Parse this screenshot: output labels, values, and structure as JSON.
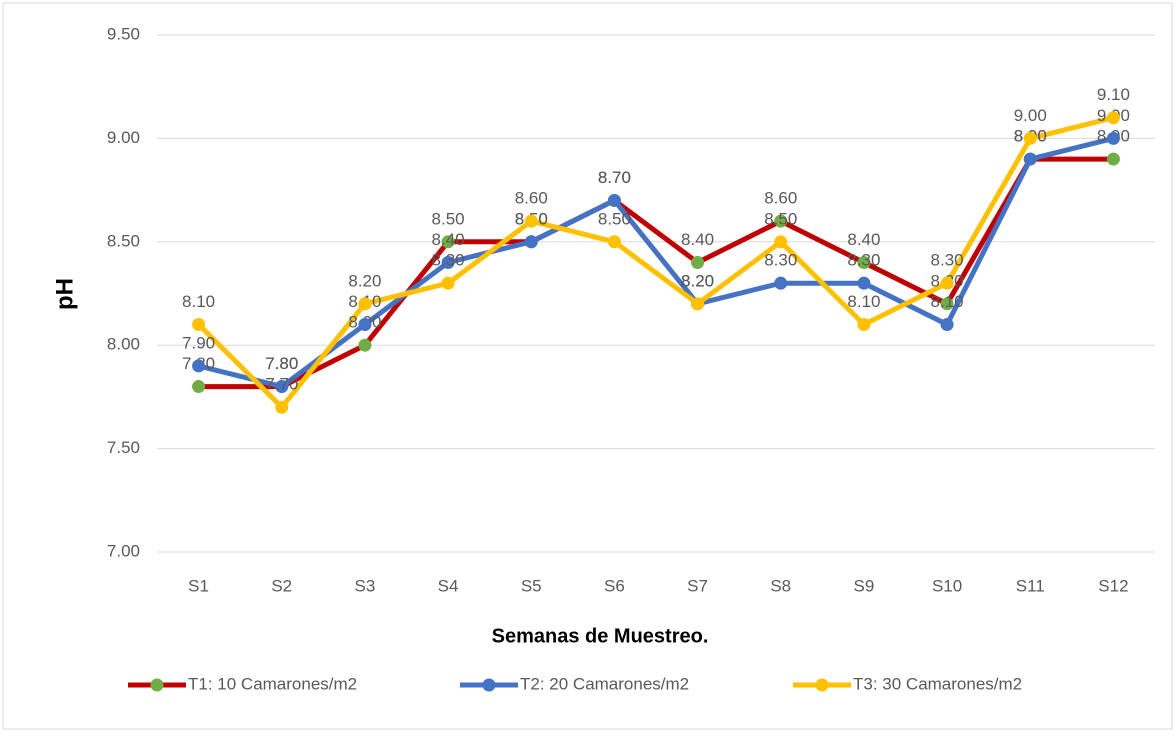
{
  "chart_data": {
    "type": "line",
    "x_label": "Semanas de Muestreo.",
    "y_label": "pH",
    "categories": [
      "S1",
      "S2",
      "S3",
      "S4",
      "S5",
      "S6",
      "S7",
      "S8",
      "S9",
      "S10",
      "S11",
      "S12"
    ],
    "series": [
      {
        "name": "T1: 10 Camarones/m2",
        "color": "#c00000",
        "marker_color": "#70ad47",
        "values": [
          7.8,
          7.8,
          8.0,
          8.5,
          8.5,
          8.7,
          8.4,
          8.6,
          8.4,
          8.2,
          8.9,
          8.9
        ],
        "value_labels": [
          "7.80",
          "7.80",
          "8.00",
          "8.50",
          "8.50",
          "8.70",
          "8.40",
          "8.60",
          "8.40",
          "8.20",
          "8.90",
          "8.90"
        ]
      },
      {
        "name": "T2: 20 Camarones/m2",
        "color": "#4472c4",
        "marker_color": "#4472c4",
        "values": [
          7.9,
          7.8,
          8.1,
          8.4,
          8.5,
          8.7,
          8.2,
          8.3,
          8.3,
          8.1,
          8.9,
          9.0
        ],
        "value_labels": [
          "7.90",
          "7.80",
          "8.10",
          "8.40",
          "8.50",
          "8.70",
          "8.20",
          "8.30",
          "8.30",
          "8.10",
          "8.90",
          "9.00"
        ]
      },
      {
        "name": "T3: 30 Camarones/m2",
        "color": "#ffc000",
        "marker_color": "#ffc000",
        "values": [
          8.1,
          7.7,
          8.2,
          8.3,
          8.6,
          8.5,
          8.2,
          8.5,
          8.1,
          8.3,
          9.0,
          9.1
        ],
        "value_labels": [
          "8.10",
          "7.70",
          "8.20",
          "8.30",
          "8.60",
          "8.50",
          "8.20",
          "8.50",
          "8.10",
          "8.30",
          "9.00",
          "9.10"
        ]
      }
    ],
    "ylim": [
      7.0,
      9.5
    ],
    "yticks": [
      {
        "value": 7.0,
        "label": "7.00"
      },
      {
        "value": 7.5,
        "label": "7.50"
      },
      {
        "value": 8.0,
        "label": "8.00"
      },
      {
        "value": 8.5,
        "label": "8.50"
      },
      {
        "value": 9.0,
        "label": "9.00"
      },
      {
        "value": 9.5,
        "label": "9.50"
      }
    ],
    "grid": true,
    "legend": "bottom"
  }
}
